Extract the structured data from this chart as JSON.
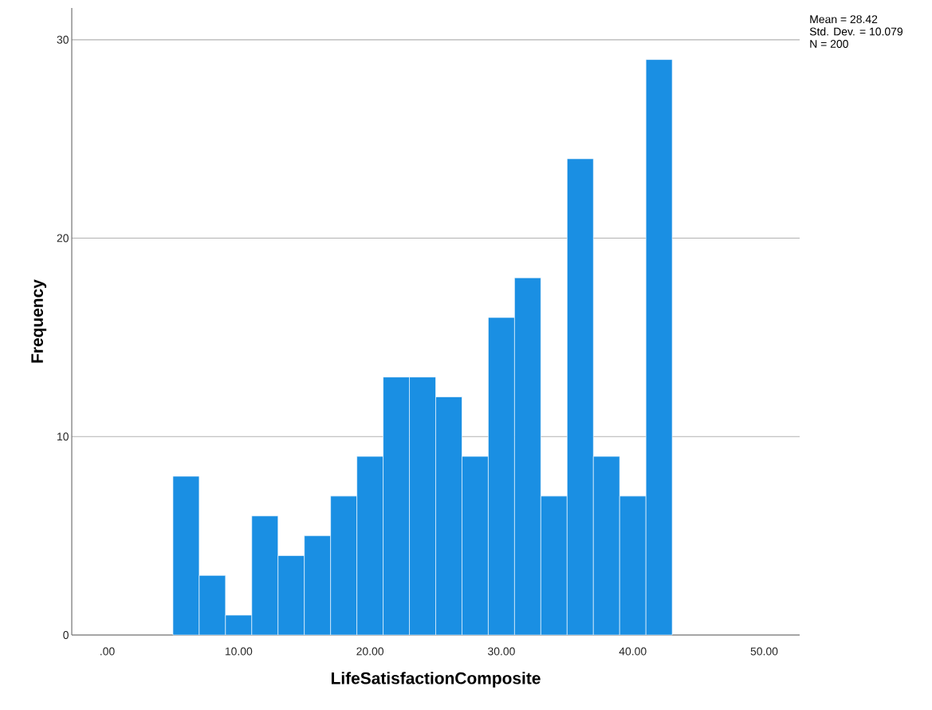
{
  "chart_data": {
    "type": "histogram",
    "xlabel": "LifeSatisfactionComposite",
    "ylabel": "Frequency",
    "bins": [
      5,
      7,
      9,
      11,
      13,
      15,
      17,
      19,
      21,
      23,
      25,
      27,
      29,
      31,
      33,
      35,
      37,
      39,
      41,
      43
    ],
    "values": [
      8,
      3,
      1,
      6,
      4,
      5,
      7,
      9,
      13,
      13,
      12,
      9,
      16,
      18,
      7,
      24,
      9,
      7,
      29
    ],
    "color": "#1a8fe3",
    "xlim": [
      -2.7,
      52.7
    ],
    "xticks": [
      {
        "value": 0,
        "label": ".00"
      },
      {
        "value": 10,
        "label": "10.00"
      },
      {
        "value": 20,
        "label": "20.00"
      },
      {
        "value": 30,
        "label": "30.00"
      },
      {
        "value": 40,
        "label": "40.00"
      },
      {
        "value": 50,
        "label": "50.00"
      }
    ],
    "ylim": [
      0,
      31.6
    ],
    "yticks": [
      0,
      10,
      20,
      30
    ],
    "grid": "y",
    "annotations": [
      "Mean = 28.42",
      "Std. Dev. = 10.079",
      "N = 200"
    ]
  }
}
